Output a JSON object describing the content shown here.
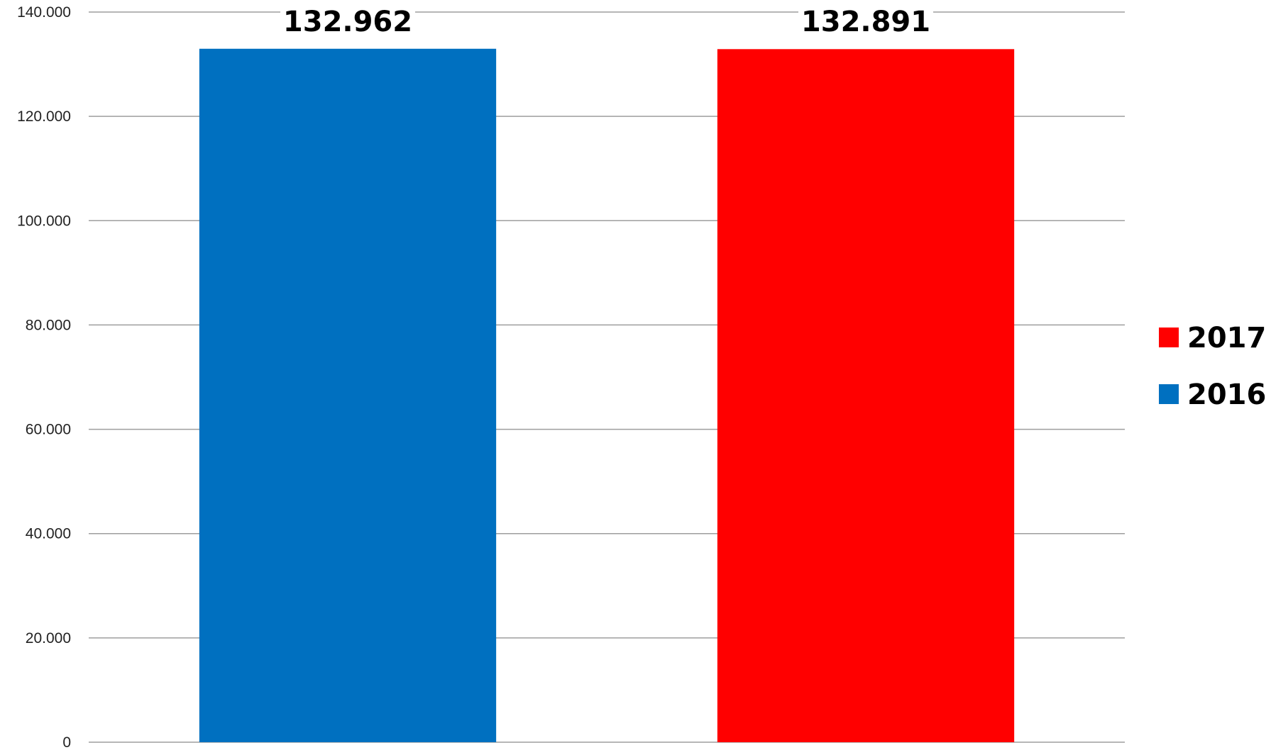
{
  "chart_data": {
    "type": "bar",
    "categories": [
      "",
      ""
    ],
    "series": [
      {
        "name": "2016",
        "values": [
          132962,
          null
        ],
        "color": "#0070C0"
      },
      {
        "name": "2017",
        "values": [
          null,
          132891
        ],
        "color": "#FF0000"
      }
    ],
    "data_labels": [
      "132.962",
      "132.891"
    ],
    "y_ticks": [
      0,
      20000,
      40000,
      60000,
      80000,
      100000,
      120000,
      140000
    ],
    "y_tick_labels": [
      "0",
      "20.000",
      "40.000",
      "60.000",
      "80.000",
      "100.000",
      "120.000",
      "140.000"
    ],
    "ylim": [
      0,
      140000
    ],
    "title": "",
    "xlabel": "",
    "ylabel": "",
    "grid": true,
    "legend": {
      "placement": "right",
      "items": [
        {
          "label": "2017",
          "color": "#FF0000"
        },
        {
          "label": "2016",
          "color": "#0070C0"
        }
      ]
    }
  }
}
